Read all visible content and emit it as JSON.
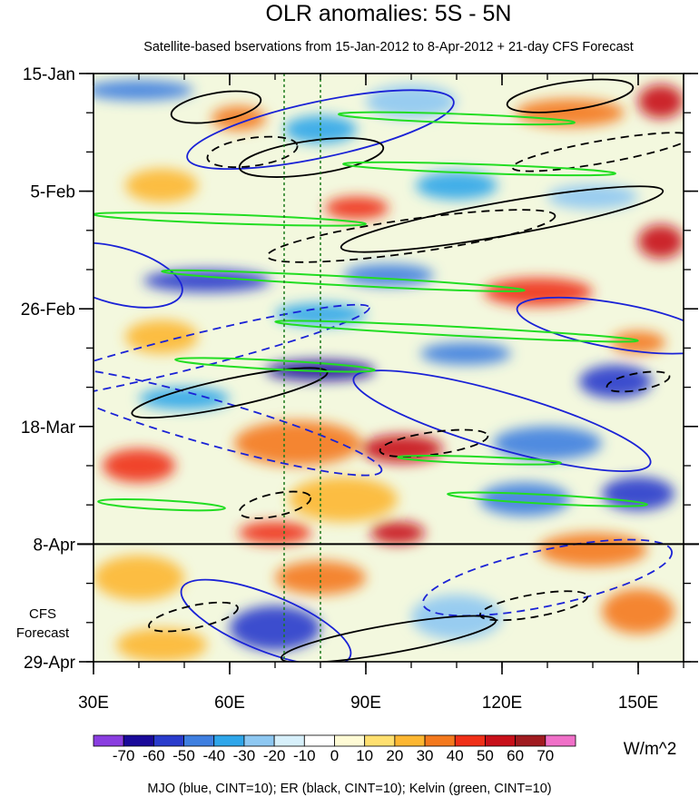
{
  "chart_data": {
    "type": "heatmap",
    "title": "OLR anomalies: 5S - 5N",
    "subtitle": "Satellite-based bservations from 15-Jan-2012 to 8-Apr-2012 + 21-day CFS Forecast",
    "x_axis": {
      "range": [
        30,
        160
      ],
      "ticks": [
        {
          "value": 30,
          "label": "30E"
        },
        {
          "value": 60,
          "label": "60E"
        },
        {
          "value": 90,
          "label": "90E"
        },
        {
          "value": 120,
          "label": "120E"
        },
        {
          "value": 150,
          "label": "150E"
        }
      ],
      "minor_step": 10
    },
    "y_axis": {
      "range_days": [
        0,
        105
      ],
      "reversed": true,
      "ticks": [
        {
          "value": 0,
          "label": "15-Jan"
        },
        {
          "value": 21,
          "label": "5-Feb"
        },
        {
          "value": 42,
          "label": "26-Feb"
        },
        {
          "value": 63,
          "label": "18-Mar"
        },
        {
          "value": 84,
          "label": "8-Apr"
        },
        {
          "value": 105,
          "label": "29-Apr"
        }
      ],
      "minor_step_days": 7
    },
    "forecast_start_day": 84,
    "forecast_label_lines": [
      "CFS",
      "Forecast"
    ],
    "reference_lines_lon": [
      72,
      80
    ],
    "colorbar": {
      "unit": "W/m^2",
      "labels": [
        "-70",
        "-60",
        "-50",
        "-40",
        "-30",
        "-20",
        "-10",
        "0",
        "10",
        "20",
        "30",
        "40",
        "50",
        "60",
        "70"
      ],
      "colors": [
        "#8a3ee0",
        "#1a0a9a",
        "#2a3ccc",
        "#3f7fe0",
        "#2fa6ea",
        "#8ec8f2",
        "#d7f0fb",
        "#fffbd5",
        "#ffe070",
        "#fdb732",
        "#f4791e",
        "#f03018",
        "#c8101a",
        "#a01b20",
        "#f070c8"
      ]
    },
    "overlays": [
      {
        "name": "MJO",
        "color": "blue"
      },
      {
        "name": "ER",
        "color": "black"
      },
      {
        "name": "Kelvin",
        "color": "green"
      }
    ],
    "footer": "MJO (blue, CINT=10); ER (black, CINT=10); Kelvin (green, CINT=10)",
    "anomaly_features": [
      {
        "lon": 40,
        "day": 3,
        "value": -40,
        "rx": 12,
        "ry": 1.8
      },
      {
        "lon": 62,
        "day": 8,
        "value": 30,
        "rx": 6,
        "ry": 2.2
      },
      {
        "lon": 80,
        "day": 10,
        "value": -30,
        "rx": 8,
        "ry": 2.5
      },
      {
        "lon": 100,
        "day": 5,
        "value": -20,
        "rx": 10,
        "ry": 3
      },
      {
        "lon": 135,
        "day": 7,
        "value": 30,
        "rx": 12,
        "ry": 2.5
      },
      {
        "lon": 155,
        "day": 5,
        "value": 50,
        "rx": 5,
        "ry": 3
      },
      {
        "lon": 45,
        "day": 20,
        "value": 20,
        "rx": 8,
        "ry": 3
      },
      {
        "lon": 88,
        "day": 24,
        "value": 40,
        "rx": 7,
        "ry": 2
      },
      {
        "lon": 110,
        "day": 20,
        "value": -30,
        "rx": 9,
        "ry": 2.5
      },
      {
        "lon": 140,
        "day": 22,
        "value": -20,
        "rx": 10,
        "ry": 2.2
      },
      {
        "lon": 155,
        "day": 30,
        "value": 50,
        "rx": 5,
        "ry": 3
      },
      {
        "lon": 55,
        "day": 37,
        "value": -50,
        "rx": 14,
        "ry": 2
      },
      {
        "lon": 95,
        "day": 36,
        "value": -40,
        "rx": 10,
        "ry": 2
      },
      {
        "lon": 128,
        "day": 39,
        "value": 40,
        "rx": 12,
        "ry": 2.5
      },
      {
        "lon": 80,
        "day": 43,
        "value": -30,
        "rx": 10,
        "ry": 2
      },
      {
        "lon": 45,
        "day": 47,
        "value": 20,
        "rx": 8,
        "ry": 3
      },
      {
        "lon": 80,
        "day": 53,
        "value": -60,
        "rx": 12,
        "ry": 1.8
      },
      {
        "lon": 112,
        "day": 50,
        "value": -40,
        "rx": 10,
        "ry": 2
      },
      {
        "lon": 145,
        "day": 55,
        "value": -50,
        "rx": 8,
        "ry": 3
      },
      {
        "lon": 150,
        "day": 48,
        "value": 30,
        "rx": 6,
        "ry": 2
      },
      {
        "lon": 50,
        "day": 58,
        "value": -30,
        "rx": 10,
        "ry": 2
      },
      {
        "lon": 75,
        "day": 66,
        "value": 30,
        "rx": 14,
        "ry": 4
      },
      {
        "lon": 98,
        "day": 67,
        "value": 50,
        "rx": 9,
        "ry": 2.5
      },
      {
        "lon": 130,
        "day": 66,
        "value": -40,
        "rx": 12,
        "ry": 3
      },
      {
        "lon": 40,
        "day": 70,
        "value": 40,
        "rx": 8,
        "ry": 3
      },
      {
        "lon": 85,
        "day": 76,
        "value": 20,
        "rx": 12,
        "ry": 4
      },
      {
        "lon": 125,
        "day": 76,
        "value": -40,
        "rx": 10,
        "ry": 3
      },
      {
        "lon": 150,
        "day": 75,
        "value": -50,
        "rx": 8,
        "ry": 3
      },
      {
        "lon": 70,
        "day": 82,
        "value": 40,
        "rx": 8,
        "ry": 2
      },
      {
        "lon": 97,
        "day": 82,
        "value": 50,
        "rx": 6,
        "ry": 2
      },
      {
        "lon": 140,
        "day": 85,
        "value": 30,
        "rx": 12,
        "ry": 3
      },
      {
        "lon": 40,
        "day": 90,
        "value": 20,
        "rx": 10,
        "ry": 4
      },
      {
        "lon": 80,
        "day": 90,
        "value": 30,
        "rx": 10,
        "ry": 3
      },
      {
        "lon": 70,
        "day": 99,
        "value": -50,
        "rx": 10,
        "ry": 4
      },
      {
        "lon": 110,
        "day": 97,
        "value": -20,
        "rx": 10,
        "ry": 4
      },
      {
        "lon": 150,
        "day": 96,
        "value": 30,
        "rx": 8,
        "ry": 4
      },
      {
        "lon": 45,
        "day": 102,
        "value": 20,
        "rx": 10,
        "ry": 3
      }
    ],
    "contours": [
      {
        "type": "MJO",
        "sign": "neg",
        "lon": 50,
        "day": 50,
        "rx": 42,
        "ry": 3,
        "angle": -14
      },
      {
        "type": "MJO",
        "sign": "neg",
        "lon": 55,
        "day": 62,
        "rx": 40,
        "ry": 4,
        "angle": 16
      },
      {
        "type": "MJO",
        "sign": "pos",
        "lon": 80,
        "day": 10,
        "rx": 30,
        "ry": 5,
        "angle": -12
      },
      {
        "type": "MJO",
        "sign": "pos",
        "lon": 68,
        "day": 98,
        "rx": 20,
        "ry": 5,
        "angle": 22
      },
      {
        "type": "MJO",
        "sign": "neg",
        "lon": 130,
        "day": 90,
        "rx": 28,
        "ry": 5,
        "angle": -12
      },
      {
        "type": "MJO",
        "sign": "pos",
        "lon": 35,
        "day": 36,
        "rx": 15,
        "ry": 5,
        "angle": 15
      },
      {
        "type": "MJO",
        "sign": "pos",
        "lon": 120,
        "day": 62,
        "rx": 34,
        "ry": 5,
        "angle": 16
      },
      {
        "type": "MJO",
        "sign": "pos",
        "lon": 145,
        "day": 45,
        "rx": 22,
        "ry": 4,
        "angle": 10
      },
      {
        "type": "ER",
        "sign": "pos",
        "lon": 57,
        "day": 6,
        "rx": 10,
        "ry": 2.5,
        "angle": -10
      },
      {
        "type": "ER",
        "sign": "pos",
        "lon": 135,
        "day": 4,
        "rx": 14,
        "ry": 2.5,
        "angle": -8
      },
      {
        "type": "ER",
        "sign": "pos",
        "lon": 78,
        "day": 15,
        "rx": 16,
        "ry": 3,
        "angle": -8
      },
      {
        "type": "ER",
        "sign": "pos",
        "lon": 120,
        "day": 26,
        "rx": 36,
        "ry": 3,
        "angle": -10
      },
      {
        "type": "ER",
        "sign": "pos",
        "lon": 60,
        "day": 57,
        "rx": 22,
        "ry": 2.5,
        "angle": -12
      },
      {
        "type": "ER",
        "sign": "pos",
        "lon": 95,
        "day": 101,
        "rx": 24,
        "ry": 2.5,
        "angle": -10
      },
      {
        "type": "ER",
        "sign": "neg",
        "lon": 65,
        "day": 14,
        "rx": 10,
        "ry": 2.5,
        "angle": -8
      },
      {
        "type": "ER",
        "sign": "neg",
        "lon": 100,
        "day": 29,
        "rx": 32,
        "ry": 3,
        "angle": -8
      },
      {
        "type": "ER",
        "sign": "neg",
        "lon": 105,
        "day": 66,
        "rx": 12,
        "ry": 2,
        "angle": -8
      },
      {
        "type": "ER",
        "sign": "neg",
        "lon": 52,
        "day": 97,
        "rx": 10,
        "ry": 2,
        "angle": -12
      },
      {
        "type": "ER",
        "sign": "neg",
        "lon": 127,
        "day": 95,
        "rx": 12,
        "ry": 2,
        "angle": -10
      },
      {
        "type": "ER",
        "sign": "neg",
        "lon": 70,
        "day": 77,
        "rx": 8,
        "ry": 2,
        "angle": -12
      },
      {
        "type": "ER",
        "sign": "neg",
        "lon": 150,
        "day": 55,
        "rx": 7,
        "ry": 1.5,
        "angle": -10
      },
      {
        "type": "ER",
        "sign": "neg",
        "lon": 142,
        "day": 14,
        "rx": 20,
        "ry": 2,
        "angle": -10
      },
      {
        "type": "Kelvin",
        "sign": "pos",
        "lon": 60,
        "day": 26,
        "rx": 30,
        "ry": 0.8,
        "angle": 2
      },
      {
        "type": "Kelvin",
        "sign": "pos",
        "lon": 115,
        "day": 17,
        "rx": 30,
        "ry": 0.8,
        "angle": 2
      },
      {
        "type": "Kelvin",
        "sign": "pos",
        "lon": 85,
        "day": 37,
        "rx": 40,
        "ry": 0.8,
        "angle": 3
      },
      {
        "type": "Kelvin",
        "sign": "pos",
        "lon": 110,
        "day": 46,
        "rx": 40,
        "ry": 0.8,
        "angle": 3
      },
      {
        "type": "Kelvin",
        "sign": "pos",
        "lon": 70,
        "day": 52,
        "rx": 22,
        "ry": 0.8,
        "angle": 3
      },
      {
        "type": "Kelvin",
        "sign": "pos",
        "lon": 110,
        "day": 8,
        "rx": 26,
        "ry": 0.8,
        "angle": 2
      },
      {
        "type": "Kelvin",
        "sign": "pos",
        "lon": 45,
        "day": 77,
        "rx": 14,
        "ry": 0.8,
        "angle": 3
      },
      {
        "type": "Kelvin",
        "sign": "pos",
        "lon": 130,
        "day": 76,
        "rx": 22,
        "ry": 0.8,
        "angle": 3
      },
      {
        "type": "Kelvin",
        "sign": "pos",
        "lon": 115,
        "day": 69,
        "rx": 18,
        "ry": 0.6,
        "angle": 2
      }
    ]
  }
}
